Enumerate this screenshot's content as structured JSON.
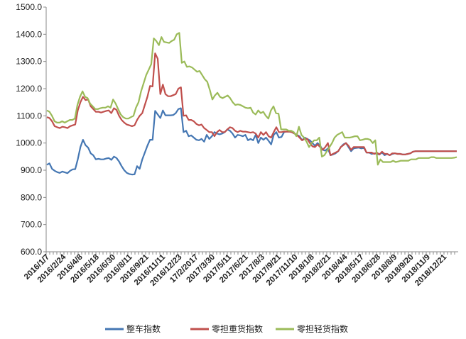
{
  "chart_data": {
    "type": "line",
    "title": "",
    "xlabel": "",
    "ylabel": "",
    "ylim": [
      600,
      1500
    ],
    "yticks": [
      "600.0",
      "700.0",
      "800.0",
      "900.0",
      "1000.0",
      "1100.0",
      "1200.0",
      "1300.0",
      "1400.0",
      "1500.0"
    ],
    "xtick_labels": [
      "2016/1/7",
      "2016/2/24",
      "2016/4/8",
      "2016/5/18",
      "2016/6/30",
      "2016/8/11",
      "2016/9/21",
      "2016/11/11",
      "2016/12/23",
      "17/2/2017",
      "2017/3/30",
      "2017/5/11",
      "2017/6/21",
      "2017/8/3",
      "2017/9/21",
      "2017/11/10",
      "2018/1/8",
      "2018/2/21",
      "2018/4/4",
      "2018/5/17",
      "2018/6/28",
      "2018/8/9",
      "2018/9/20",
      "2018/11/9",
      "2018/12/21"
    ],
    "grid": false,
    "legend_position": "bottom",
    "series": [
      {
        "name": "整车指数",
        "color": "#4577b3",
        "values": [
          920,
          925,
          905,
          898,
          893,
          890,
          895,
          892,
          889,
          898,
          903,
          904,
          940,
          985,
          1012,
          992,
          983,
          962,
          955,
          940,
          942,
          940,
          940,
          943,
          945,
          938,
          950,
          945,
          932,
          915,
          900,
          890,
          886,
          884,
          885,
          915,
          905,
          940,
          965,
          990,
          1012,
          1012,
          1118,
          1105,
          1092,
          1120,
          1102,
          1102,
          1102,
          1103,
          1110,
          1125,
          1128,
          1040,
          1045,
          1025,
          1028,
          1020,
          1012,
          1010,
          1015,
          1005,
          1030,
          1015,
          1025,
          1040,
          1035,
          1032,
          1035,
          1040,
          1050,
          1045,
          1035,
          1020,
          1030,
          1028,
          1025,
          1030,
          1010,
          1015,
          1010,
          1030,
          1000,
          1020,
          1012,
          1020,
          1008,
          995,
          1030,
          1040,
          1020,
          1022,
          1040,
          1042,
          1042,
          1040,
          1035,
          1030,
          1025,
          1010,
          1020,
          1015,
          1010,
          1000,
          990,
          1000,
          990,
          975,
          972,
          980,
          955,
          958,
          962,
          970,
          985,
          995,
          1000,
          985,
          970,
          980,
          982,
          983,
          980,
          982,
          965,
          965,
          960,
          962,
          960,
          958,
          965,
          955,
          960,
          955,
          960,
          962,
          960,
          960,
          958,
          958,
          960,
          962,
          968,
          970,
          970,
          970,
          970,
          970,
          970,
          970,
          970,
          970,
          970,
          970,
          970,
          970,
          970,
          970,
          970,
          970
        ]
      },
      {
        "name": "零担重货指数",
        "color": "#c0504d",
        "values": [
          1095,
          1092,
          1080,
          1062,
          1058,
          1055,
          1060,
          1058,
          1055,
          1062,
          1065,
          1068,
          1120,
          1150,
          1170,
          1158,
          1160,
          1135,
          1125,
          1115,
          1115,
          1112,
          1115,
          1118,
          1120,
          1110,
          1128,
          1122,
          1100,
          1085,
          1075,
          1068,
          1065,
          1062,
          1065,
          1085,
          1100,
          1110,
          1140,
          1170,
          1210,
          1208,
          1330,
          1310,
          1180,
          1215,
          1180,
          1172,
          1172,
          1176,
          1180,
          1200,
          1205,
          1100,
          1102,
          1085,
          1085,
          1080,
          1070,
          1065,
          1068,
          1055,
          1048,
          1040,
          1040,
          1025,
          1040,
          1048,
          1040,
          1040,
          1050,
          1058,
          1055,
          1045,
          1040,
          1045,
          1042,
          1042,
          1040,
          1038,
          1040,
          1035,
          1020,
          1040,
          1030,
          1040,
          1025,
          1020,
          1040,
          1058,
          1040,
          1040,
          1042,
          1042,
          1042,
          1040,
          1035,
          1030,
          1020,
          1010,
          1015,
          1015,
          1000,
          988,
          985,
          995,
          985,
          975,
          985,
          1000,
          955,
          960,
          965,
          970,
          985,
          992,
          1000,
          990,
          975,
          985,
          985,
          985,
          985,
          985,
          965,
          965,
          965,
          960,
          965,
          958,
          968,
          960,
          960,
          955,
          962,
          962,
          960,
          960,
          958,
          958,
          960,
          962,
          968,
          970,
          970,
          970,
          970,
          970,
          970,
          970,
          970,
          970,
          970,
          970,
          970,
          970,
          970,
          970,
          970,
          970
        ]
      },
      {
        "name": "零担轻货指数",
        "color": "#9bbb59",
        "values": [
          1120,
          1115,
          1100,
          1080,
          1075,
          1075,
          1080,
          1075,
          1080,
          1085,
          1085,
          1090,
          1140,
          1170,
          1190,
          1170,
          1165,
          1145,
          1135,
          1125,
          1125,
          1128,
          1130,
          1130,
          1135,
          1130,
          1160,
          1145,
          1125,
          1105,
          1095,
          1090,
          1090,
          1095,
          1100,
          1130,
          1150,
          1190,
          1220,
          1250,
          1270,
          1290,
          1385,
          1375,
          1360,
          1390,
          1372,
          1370,
          1368,
          1375,
          1380,
          1400,
          1405,
          1295,
          1300,
          1280,
          1282,
          1278,
          1270,
          1262,
          1265,
          1250,
          1235,
          1225,
          1195,
          1160,
          1175,
          1185,
          1170,
          1165,
          1170,
          1175,
          1165,
          1150,
          1140,
          1142,
          1140,
          1135,
          1130,
          1128,
          1130,
          1112,
          1105,
          1120,
          1110,
          1115,
          1100,
          1090,
          1120,
          1135,
          1110,
          1108,
          1050,
          1050,
          1050,
          1045,
          1045,
          1040,
          1025,
          1060,
          1030,
          1020,
          1005,
          985,
          1000,
          1010,
          1010,
          1020,
          950,
          955,
          970,
          985,
          1000,
          1020,
          1030,
          1035,
          1040,
          1020,
          1020,
          1020,
          1022,
          1025,
          1025,
          1010,
          1012,
          1015,
          1015,
          1012,
          1000,
          1010,
          920,
          940,
          930,
          930,
          930,
          930,
          935,
          930,
          932,
          935,
          935,
          935,
          935,
          940,
          940,
          940,
          945,
          945,
          945,
          945,
          945,
          948,
          948,
          945,
          945,
          945,
          945,
          945,
          945,
          945,
          946,
          948
        ]
      }
    ]
  }
}
